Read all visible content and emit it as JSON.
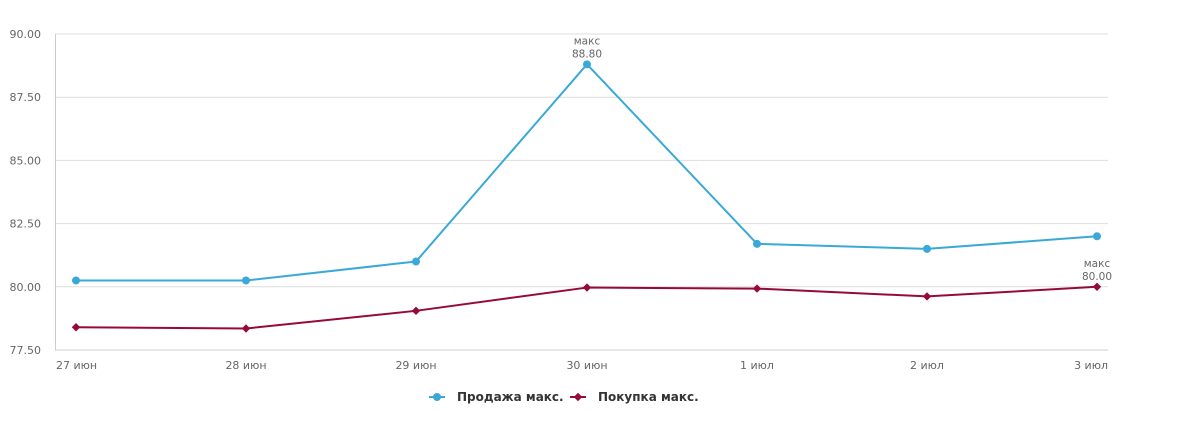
{
  "chart_data": {
    "type": "line",
    "categories": [
      "27 июн",
      "28 июн",
      "29 июн",
      "30 июн",
      "1 июл",
      "2 июл",
      "3 июл"
    ],
    "ylim": [
      77.5,
      90.0
    ],
    "yticks": [
      "77.50",
      "80.00",
      "82.50",
      "85.00",
      "87.50",
      "90.00"
    ],
    "grid": true,
    "legend_placement": "bottom-center",
    "series": [
      {
        "name": "Продажа макс.",
        "color": "#3aa9d8",
        "marker": "circle",
        "values": [
          80.25,
          80.25,
          81.0,
          88.8,
          81.7,
          81.5,
          82.0
        ]
      },
      {
        "name": "Покупка макс.",
        "color": "#960a3a",
        "marker": "diamond",
        "values": [
          78.4,
          78.35,
          79.05,
          79.97,
          79.93,
          79.62,
          80.0
        ]
      }
    ],
    "annotations": [
      {
        "series": 0,
        "index": 3,
        "label": "макс",
        "value": "88.80"
      },
      {
        "series": 1,
        "index": 6,
        "label": "макс",
        "value": "80.00"
      }
    ]
  }
}
